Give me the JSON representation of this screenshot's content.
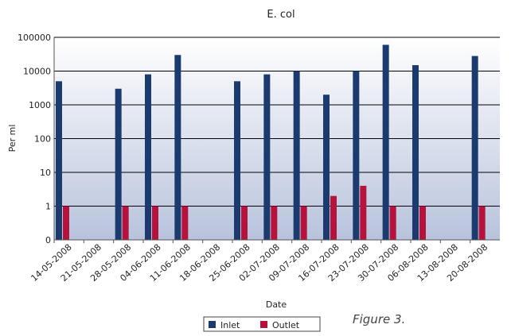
{
  "figure_caption": "Figure 3.",
  "colors": {
    "inlet": "#1b3b6f",
    "outlet": "#b5123c",
    "plot_top": "#ffffff",
    "plot_bottom": "#b8c3dc",
    "grid": "#000000"
  },
  "chart_data": {
    "type": "bar",
    "title": "E. col",
    "xlabel": "Date",
    "ylabel": "Per ml",
    "y_scale": "log",
    "y_ticks": [
      "100000",
      "10000",
      "1000",
      "100",
      "10",
      "1",
      "0"
    ],
    "grid": true,
    "legend_position": "bottom-center",
    "categories": [
      "14-05-2008",
      "21-05-2008",
      "28-05-2008",
      "04-06-2008",
      "11-06-2008",
      "18-06-2008",
      "25-06-2008",
      "02-07-2008",
      "09-07-2008",
      "16-07-2008",
      "23-07-2008",
      "30-07-2008",
      "06-08-2008",
      "13-08-2008",
      "20-08-2008"
    ],
    "series": [
      {
        "name": "Inlet",
        "values": [
          5000,
          null,
          3000,
          8000,
          30000,
          null,
          5000,
          8000,
          10000,
          2000,
          10000,
          60000,
          15000,
          null,
          28000
        ]
      },
      {
        "name": "Outlet",
        "values": [
          1,
          null,
          1,
          1,
          1,
          null,
          1,
          1,
          1,
          2,
          4,
          1,
          1,
          null,
          1
        ]
      }
    ]
  }
}
